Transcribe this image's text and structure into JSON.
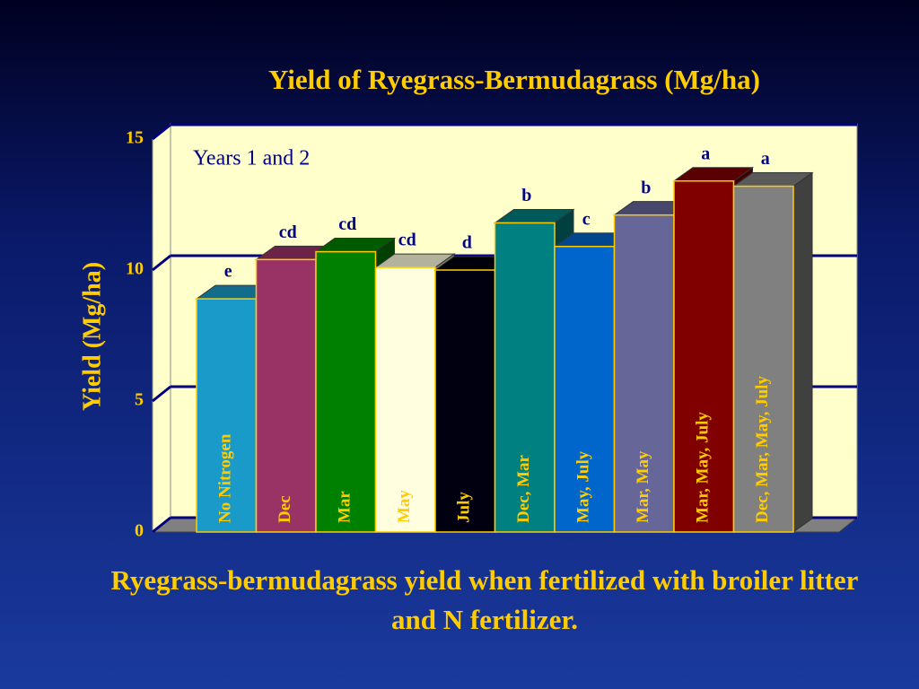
{
  "chart_data": {
    "type": "bar3d",
    "title": "Yield of  Ryegrass-Bermudagrass (Mg/ha)",
    "subtitle": "Years 1 and 2",
    "y_label": "Yield (Mg/ha)",
    "categories": [
      "No Nitrogen",
      "Dec",
      "Mar",
      "May",
      "July",
      "Dec, Mar",
      "May, July",
      "Mar, May",
      "Mar, May, July",
      "Dec, Mar, May, July"
    ],
    "values": [
      8.9,
      10.4,
      10.7,
      10.1,
      10.0,
      11.8,
      10.9,
      12.1,
      13.4,
      13.2
    ],
    "letters": [
      "e",
      "cd",
      "cd",
      "cd",
      "d",
      "b",
      "c",
      "b",
      "a",
      "a"
    ],
    "colors": [
      "#1a9ac8",
      "#993366",
      "#008000",
      "#ffffe0",
      "#000010",
      "#008080",
      "#0066cc",
      "#666699",
      "#800000",
      "#808080"
    ],
    "ylim": [
      0,
      15
    ],
    "yticks": [
      0,
      5,
      10,
      15
    ],
    "grid": true,
    "caption": "Ryegrass-bermudagrass yield when fertilized with broiler litter and N fertilizer."
  }
}
